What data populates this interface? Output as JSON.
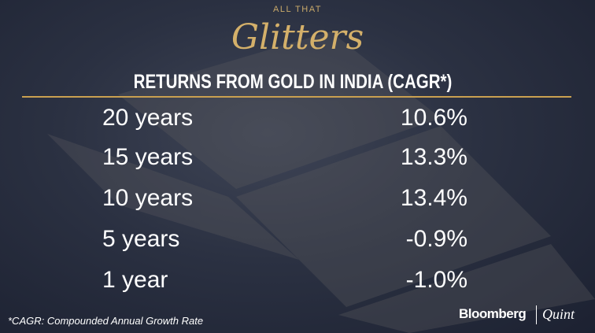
{
  "header": {
    "kicker": "ALL THAT",
    "logo": "Glitters",
    "title": "RETURNS FROM GOLD IN INDIA (CAGR*)"
  },
  "table": {
    "rows": [
      [
        "20 years",
        "10.6%"
      ],
      [
        "15 years",
        "13.3%"
      ],
      [
        "10 years",
        "13.4%"
      ],
      [
        "5 years",
        "-0.9%"
      ],
      [
        "1 year",
        "-1.0%"
      ]
    ]
  },
  "footer": {
    "note": "*CAGR: Compounded Annual Growth Rate",
    "brand": [
      "Bloomberg",
      "Quint"
    ]
  }
}
